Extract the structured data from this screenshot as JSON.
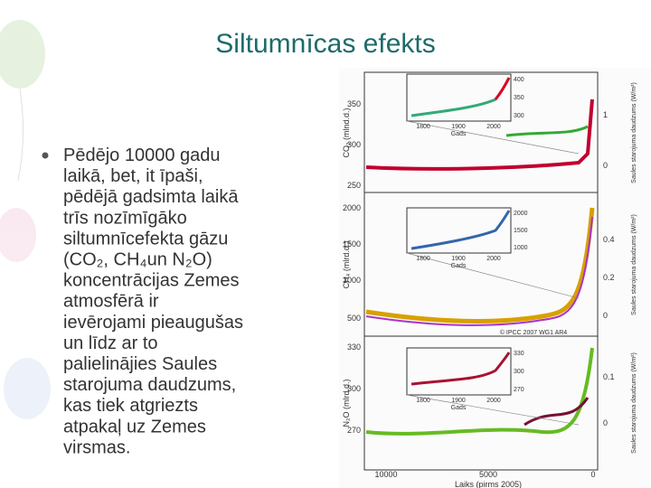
{
  "title": "Siltumnīcas efekts",
  "bullet": {
    "lines": [
      "Pēdējo 10000 gadu",
      "laikā, bet, it īpaši,",
      "pēdējā gadsimta laikā",
      "trīs nozīmīgāko",
      "siltumnīcefekta gāzu",
      "(CO₂, CH₄un N₂O)",
      "koncentrācijas Zemes",
      "atmosfērā ir",
      "ievērojami pieaugušas",
      "un līdz ar to",
      "palielinājies Saules",
      "starojuma daudzums,",
      "kas tiek atgriezts",
      "atpakaļ uz Zemes",
      "virsmas."
    ]
  },
  "figure": {
    "panels": [
      {
        "y_label": "CO₂ (mlnd.d.)",
        "yticks": [
          "350",
          "300",
          "250"
        ],
        "right_label": "Saules starojuma daudzums (W/m²)",
        "right_ticks": [
          "1",
          "0"
        ],
        "inset": {
          "yticks": [
            "400",
            "350",
            "300"
          ],
          "xticks": [
            "1800",
            "1900",
            "2000"
          ],
          "x_label": "Gads"
        }
      },
      {
        "y_label": "CH₄ (mlrd.d.)",
        "yticks": [
          "2000",
          "1500",
          "1000",
          "500"
        ],
        "right_label": "Saules starojuma daudzums (W/m²)",
        "right_ticks": [
          "0.4",
          "0.2",
          "0"
        ],
        "inset": {
          "yticks": [
            "2000",
            "1500",
            "1000"
          ],
          "xticks": [
            "1800",
            "1900",
            "2000"
          ],
          "x_label": "Gads"
        }
      },
      {
        "y_label": "N₂O (mlrd.d.)",
        "yticks": [
          "330",
          "300",
          "270"
        ],
        "right_label": "Saules starojuma daudzums (W/m²)",
        "right_ticks": [
          "0.1",
          "0"
        ],
        "inset": {
          "yticks": [
            "330",
            "300",
            "270"
          ],
          "xticks": [
            "1800",
            "1900",
            "2000"
          ],
          "x_label": "Gads"
        }
      }
    ],
    "credit": "© IPCC 2007 WG1 AR4",
    "xticks": [
      "10000",
      "5000",
      "0"
    ],
    "x_label": "Laiks (pirms 2005)"
  }
}
